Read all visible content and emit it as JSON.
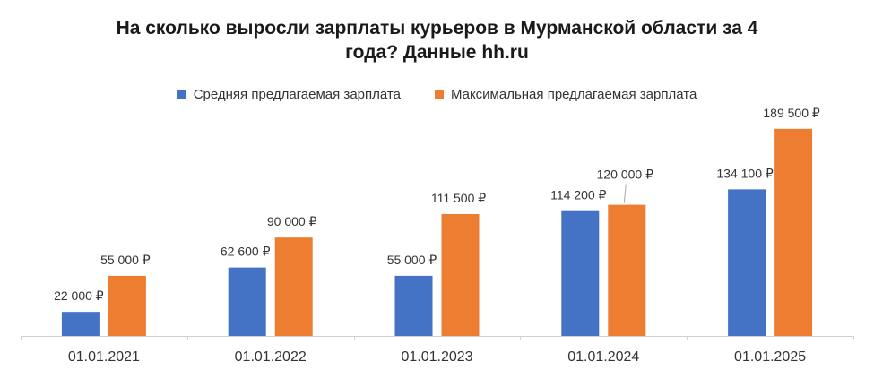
{
  "chart_data": {
    "type": "bar",
    "title_lines": [
      "На сколько выросли зарплаты курьеров в Мурманской области за 4",
      "года? Данные hh.ru"
    ],
    "categories": [
      "01.01.2021",
      "01.01.2022",
      "01.01.2023",
      "01.01.2024",
      "01.01.2025"
    ],
    "series": [
      {
        "name": "Средняя предлагаемая зарплата",
        "color": "#4472C4",
        "values": [
          22000,
          62600,
          55000,
          114200,
          134100
        ],
        "labels": [
          "22 000 ₽",
          "62 600 ₽",
          "55 000 ₽",
          "114 200 ₽",
          "134 100 ₽"
        ]
      },
      {
        "name": "Максимальная предлагаемая зарплата",
        "color": "#ED7D31",
        "values": [
          55000,
          90000,
          111500,
          120000,
          189500
        ],
        "labels": [
          "55 000 ₽",
          "90 000 ₽",
          "111 500 ₽",
          "120 000 ₽",
          "189 500 ₽"
        ]
      }
    ],
    "ylim": [
      0,
      200000
    ],
    "grid": false,
    "legend_position": "top"
  }
}
